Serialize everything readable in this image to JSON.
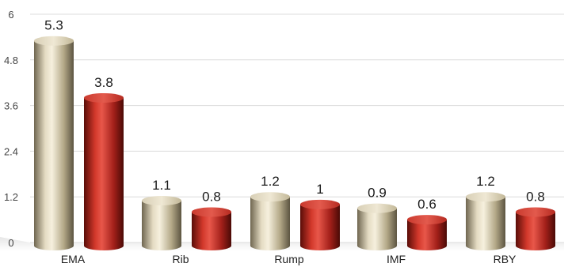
{
  "chart_data": {
    "type": "bar",
    "categories": [
      "EMA",
      "Rib",
      "Rump",
      "IMF",
      "RBY"
    ],
    "series": [
      {
        "values": [
          5.3,
          1.1,
          1.2,
          0.9,
          1.2
        ],
        "color": "#c9bd9a"
      },
      {
        "values": [
          3.8,
          0.8,
          1.0,
          0.6,
          0.8
        ],
        "color": "#b3251c"
      }
    ],
    "value_labels": [
      [
        "5.3",
        "1.1",
        "1.2",
        "0.9",
        "1.2"
      ],
      [
        "3.8",
        "0.8",
        "1",
        "0.6",
        "0.8"
      ]
    ],
    "y_ticks": [
      "0",
      "1.2",
      "2.4",
      "3.6",
      "4.8",
      "6"
    ],
    "ylim": [
      0,
      6
    ],
    "grid": true,
    "style": "3d-cylinder"
  }
}
